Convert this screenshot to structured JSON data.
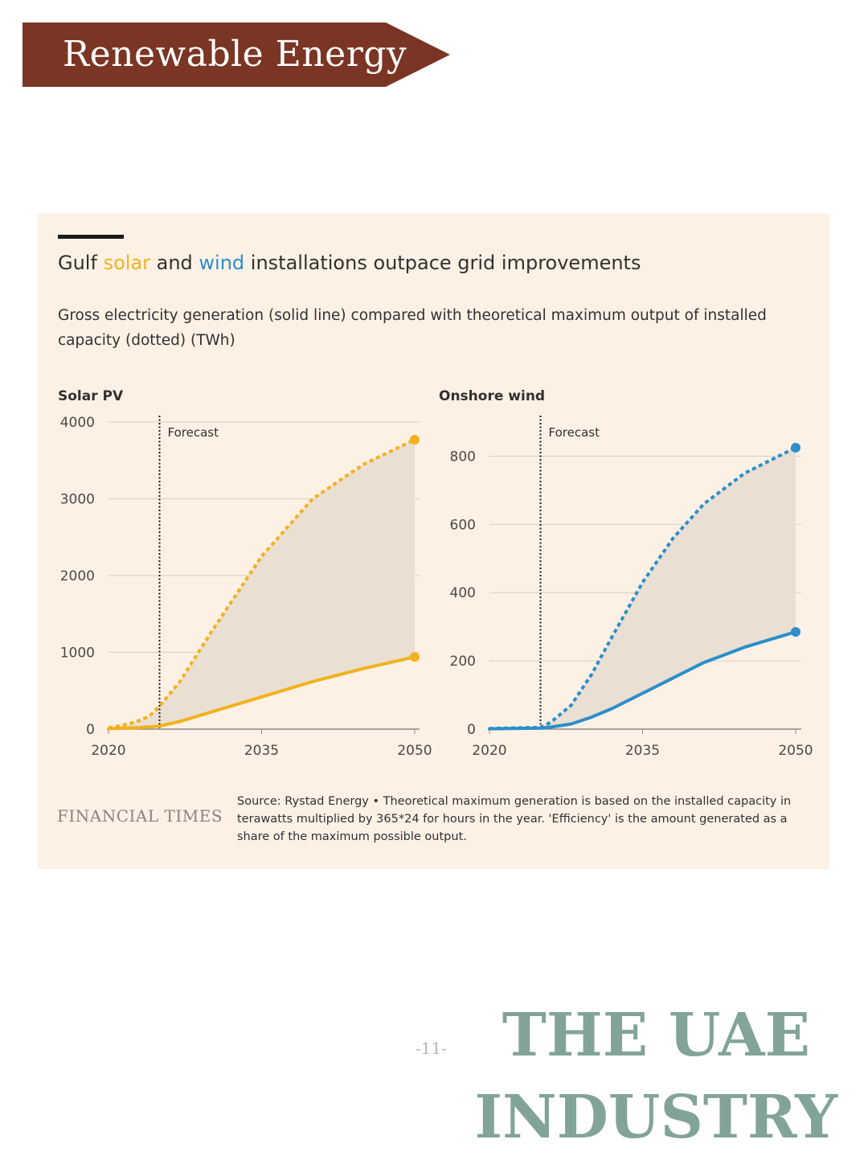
{
  "banner": {
    "title": "Renewable Energy",
    "color": "#7b3524"
  },
  "card": {
    "title_parts": [
      "Gulf ",
      "solar",
      " and ",
      "wind",
      " installations outpace grid improvements"
    ],
    "subtitle": "Gross electricity generation (solid line) compared with theoretical maximum output of installed capacity (dotted) (TWh)",
    "logo": "FINANCIAL TIMES",
    "source": "Source: Rystad Energy • Theoretical maximum generation is based on the installed capacity in terawatts multiplied by 365*24 for hours in the year. 'Efficiency' is the amount generated as a share of the maximum possible output."
  },
  "chart_data": [
    {
      "type": "line",
      "title": "Solar PV",
      "color": "#f2b21c",
      "x": [
        2020,
        2021,
        2022,
        2023,
        2024,
        2025,
        2027,
        2030,
        2035,
        2040,
        2045,
        2050
      ],
      "series": [
        {
          "name": "Theoretical maximum output (dotted)",
          "style": "dotted",
          "values": [
            20,
            40,
            70,
            110,
            170,
            300,
            620,
            1250,
            2250,
            3000,
            3450,
            3770
          ]
        },
        {
          "name": "Gross electricity generation (solid)",
          "style": "solid",
          "values": [
            5,
            10,
            15,
            20,
            30,
            40,
            100,
            220,
            420,
            620,
            790,
            940
          ]
        }
      ],
      "x_ticks": [
        "2020",
        "2035",
        "2050"
      ],
      "y_ticks": [
        "0",
        "1000",
        "2000",
        "3000",
        "4000"
      ],
      "ylim": [
        0,
        4000
      ],
      "xlim": [
        2020,
        2050
      ],
      "forecast_label": "Forecast",
      "forecast_start": 2025
    },
    {
      "type": "line",
      "title": "Onshore wind",
      "color": "#2b8fca",
      "x": [
        2020,
        2022,
        2025,
        2026,
        2028,
        2030,
        2032,
        2035,
        2038,
        2041,
        2045,
        2050
      ],
      "series": [
        {
          "name": "Theoretical maximum output (dotted)",
          "style": "dotted",
          "values": [
            2,
            3,
            5,
            20,
            70,
            160,
            270,
            430,
            560,
            660,
            750,
            825
          ]
        },
        {
          "name": "Gross electricity generation (solid)",
          "style": "solid",
          "values": [
            1,
            2,
            3,
            6,
            15,
            35,
            60,
            105,
            150,
            195,
            240,
            285
          ]
        }
      ],
      "x_ticks": [
        "2020",
        "2035",
        "2050"
      ],
      "y_ticks": [
        "0",
        "200",
        "400",
        "600",
        "800"
      ],
      "ylim": [
        0,
        900
      ],
      "xlim": [
        2020,
        2050
      ],
      "forecast_label": "Forecast",
      "forecast_start": 2025
    }
  ],
  "footer": {
    "page_number": "-11-",
    "line1": "THE UAE",
    "line2": "INDUSTRY",
    "color": "#82a39a"
  }
}
